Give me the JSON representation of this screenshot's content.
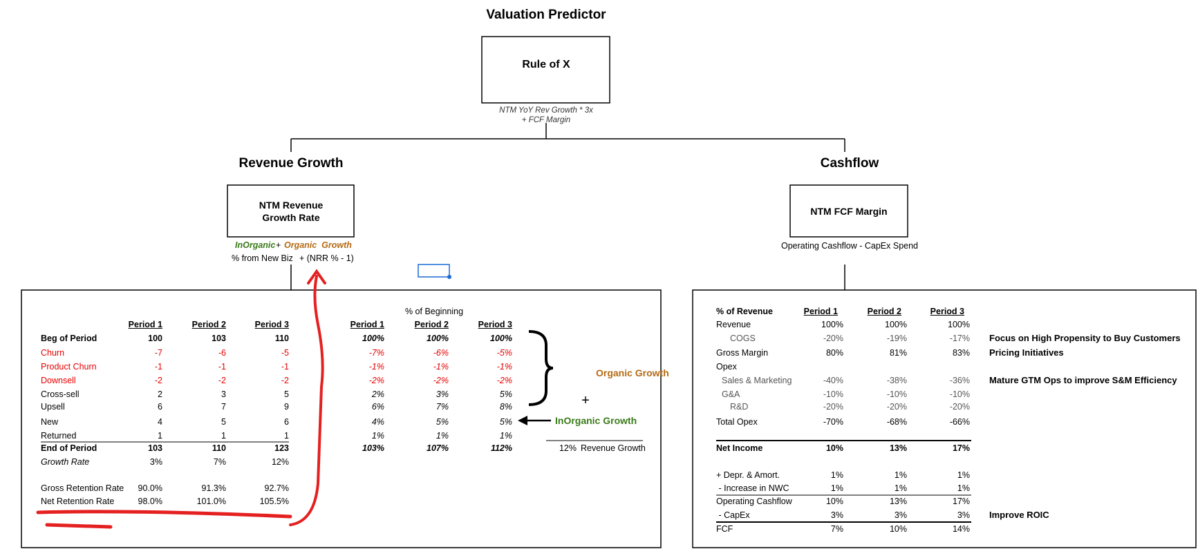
{
  "header": {
    "title": "Valuation Predictor"
  },
  "rule_box": {
    "title": "Rule of X",
    "formula": [
      "NTM YoY Rev Growth * 3x",
      "+ FCF Margin"
    ]
  },
  "revenue": {
    "heading": "Revenue Growth",
    "box": "NTM Revenue Growth Rate",
    "inorganic": "InOrganic",
    "plus": "+",
    "organic": "Organic  Growth",
    "formula_left": "% from New Biz",
    "formula_right": "+ (NRR % - 1)"
  },
  "cashflow": {
    "heading": "Cashflow",
    "box": "NTM FCF Margin",
    "formula": "Operating Cashflow - CapEx Spend"
  },
  "revenue_table": {
    "periods": [
      "Period 1",
      "Period 2",
      "Period 3"
    ],
    "pct_title": "% of Beginning",
    "pct_periods": [
      "Period 1",
      "Period 2",
      "Period 3"
    ],
    "rows": [
      {
        "label": "Beg of Period",
        "values": [
          "100",
          "103",
          "110"
        ],
        "pct": [
          "100%",
          "100%",
          "100%"
        ]
      },
      {
        "label": "Churn",
        "values": [
          "-7",
          "-6",
          "-5"
        ],
        "pct": [
          "-7%",
          "-6%",
          "-5%"
        ]
      },
      {
        "label": "Product Churn",
        "values": [
          "-1",
          "-1",
          "-1"
        ],
        "pct": [
          "-1%",
          "-1%",
          "-1%"
        ]
      },
      {
        "label": "Downsell",
        "values": [
          "-2",
          "-2",
          "-2"
        ],
        "pct": [
          "-2%",
          "-2%",
          "-2%"
        ]
      },
      {
        "label": "Cross-sell",
        "values": [
          "2",
          "3",
          "5"
        ],
        "pct": [
          "2%",
          "3%",
          "5%"
        ]
      },
      {
        "label": "Upsell",
        "values": [
          "6",
          "7",
          "9"
        ],
        "pct": [
          "6%",
          "7%",
          "8%"
        ]
      },
      {
        "label": "New",
        "values": [
          "4",
          "5",
          "6"
        ],
        "pct": [
          "4%",
          "5%",
          "5%"
        ]
      },
      {
        "label": "Returned",
        "values": [
          "1",
          "1",
          "1"
        ],
        "pct": [
          "1%",
          "1%",
          "1%"
        ]
      },
      {
        "label": "End of Period",
        "values": [
          "103",
          "110",
          "123"
        ],
        "pct": [
          "103%",
          "107%",
          "112%"
        ]
      },
      {
        "label": "Growth Rate",
        "values": [
          "3%",
          "7%",
          "12%"
        ]
      },
      {
        "label": "Gross Retention Rate",
        "values": [
          "90.0%",
          "91.3%",
          "92.7%"
        ]
      },
      {
        "label": "Net Retention Rate",
        "values": [
          "98.0%",
          "101.0%",
          "105.5%"
        ]
      }
    ],
    "organic_label": "Organic Growth",
    "plus": "+",
    "inorganic_label": "InOrganic Growth",
    "growth_value": "12%",
    "growth_label": "Revenue Growth"
  },
  "cashflow_table": {
    "title": "% of Revenue",
    "periods": [
      "Period 1",
      "Period 2",
      "Period 3"
    ],
    "rows": [
      {
        "label": "Revenue",
        "values": [
          "100%",
          "100%",
          "100%"
        ]
      },
      {
        "label": "COGS",
        "values": [
          "-20%",
          "-19%",
          "-17%"
        ],
        "note": "Focus on High Propensity to Buy Customers"
      },
      {
        "label": "Gross Margin",
        "values": [
          "80%",
          "81%",
          "83%"
        ],
        "note": "Pricing Initiatives"
      },
      {
        "label": "Opex"
      },
      {
        "label": "Sales & Marketing",
        "values": [
          "-40%",
          "-38%",
          "-36%"
        ],
        "note": "Mature GTM Ops to improve S&M Efficiency"
      },
      {
        "label": "G&A",
        "values": [
          "-10%",
          "-10%",
          "-10%"
        ]
      },
      {
        "label": "R&D",
        "values": [
          "-20%",
          "-20%",
          "-20%"
        ]
      },
      {
        "label": "Total Opex",
        "values": [
          "-70%",
          "-68%",
          "-66%"
        ]
      },
      {
        "label": "Net Income",
        "values": [
          "10%",
          "13%",
          "17%"
        ]
      },
      {
        "label": "+ Depr. & Amort.",
        "values": [
          "1%",
          "1%",
          "1%"
        ]
      },
      {
        "label": " - Increase in NWC",
        "values": [
          "1%",
          "1%",
          "1%"
        ]
      },
      {
        "label": "Operating Cashflow",
        "values": [
          "10%",
          "13%",
          "17%"
        ]
      },
      {
        "label": " - CapEx",
        "values": [
          "3%",
          "3%",
          "3%"
        ],
        "note": "Improve ROIC"
      },
      {
        "label": "FCF",
        "values": [
          "7%",
          "10%",
          "14%"
        ]
      }
    ]
  }
}
